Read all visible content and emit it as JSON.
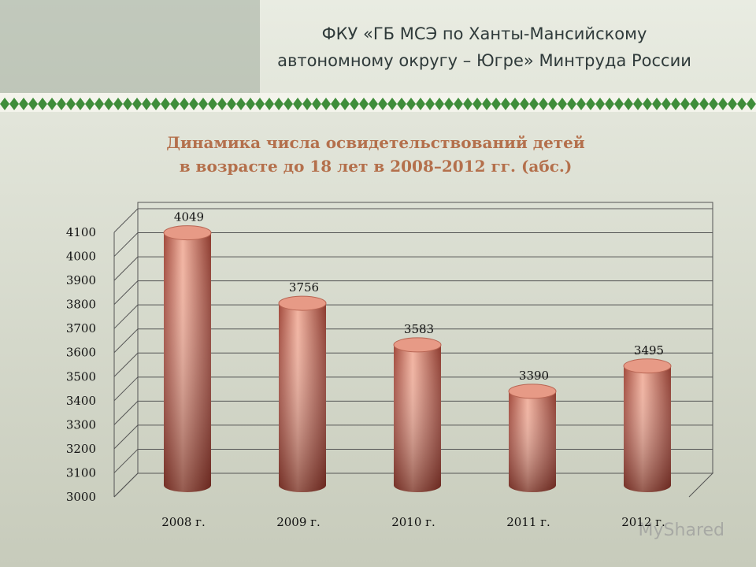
{
  "header": {
    "lines": [
      "ФКУ «ГБ МСЭ по Ханты-Мансийскому",
      "автономному округу – Югре» Минтруда России"
    ]
  },
  "watermark": "MyShared",
  "chart_data": {
    "type": "bar3d",
    "title": [
      "Динамика числа освидетельствований детей",
      "в возрасте до 18 лет в 2008–2012 гг. (абс.)"
    ],
    "categories": [
      "2008 г.",
      "2009 г.",
      "2010 г.",
      "2011 г.",
      "2012 г."
    ],
    "values": [
      4049,
      3756,
      3583,
      3390,
      3495
    ],
    "color": "#c8705e",
    "ylim": [
      3000,
      4100
    ],
    "yticks": [
      3000,
      3100,
      3200,
      3300,
      3400,
      3500,
      3600,
      3700,
      3800,
      3900,
      4000,
      4100
    ],
    "grid": true
  }
}
